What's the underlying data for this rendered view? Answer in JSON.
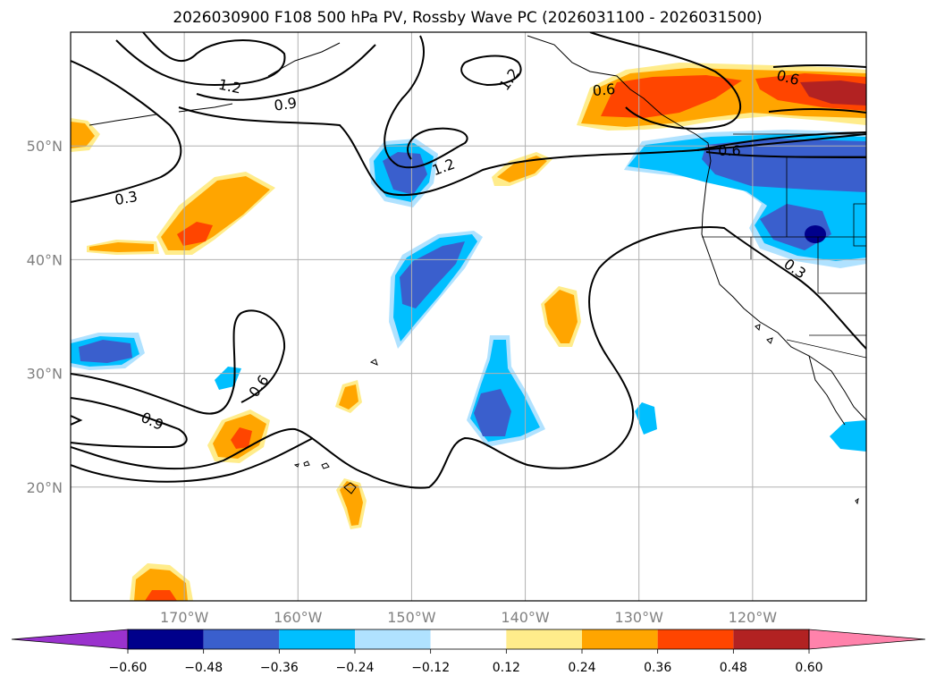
{
  "title": "2026030900 F108 500 hPa PV, Rossby Wave PC (2026031100 - 2026031500)",
  "map": {
    "lon_range": [
      -180,
      -110
    ],
    "lat_range": [
      10,
      60
    ],
    "lat_ticks": [
      {
        "value": 50,
        "label": "50°N"
      },
      {
        "value": 40,
        "label": "40°N"
      },
      {
        "value": 30,
        "label": "30°N"
      },
      {
        "value": 20,
        "label": "20°N"
      }
    ],
    "lon_ticks": [
      {
        "value": -170,
        "label": "170°W"
      },
      {
        "value": -160,
        "label": "160°W"
      },
      {
        "value": -150,
        "label": "150°W"
      },
      {
        "value": -140,
        "label": "140°W"
      },
      {
        "value": -130,
        "label": "130°W"
      },
      {
        "value": -120,
        "label": "120°W"
      }
    ],
    "contour_labels": [
      {
        "text": "1.2"
      },
      {
        "text": "0.9"
      },
      {
        "text": "1.2"
      },
      {
        "text": "1.2"
      },
      {
        "text": "0.6"
      },
      {
        "text": "0.6"
      },
      {
        "text": "0.3"
      },
      {
        "text": "0.3"
      },
      {
        "text": "0.6"
      },
      {
        "text": "0.9"
      },
      {
        "text": "0.6"
      }
    ]
  },
  "colorbar": {
    "colors": [
      "#9a32cd",
      "#00008b",
      "#3a5fcd",
      "#00bfff",
      "#b0e2ff",
      "#ffffff",
      "#ffec8b",
      "#ffa500",
      "#ff4500",
      "#b22222",
      "#ff82ab"
    ],
    "labels": [
      "−0.60",
      "−0.48",
      "−0.36",
      "−0.24",
      "−0.12",
      "0.12",
      "0.24",
      "0.36",
      "0.48",
      "0.60"
    ]
  }
}
